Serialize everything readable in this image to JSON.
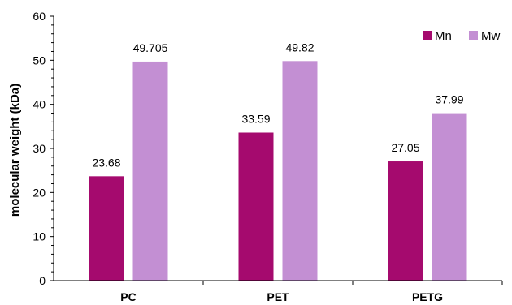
{
  "chart_data": {
    "type": "bar",
    "categories": [
      "PC",
      "PET",
      "PETG"
    ],
    "series": [
      {
        "name": "Mn",
        "values": [
          23.68,
          33.59,
          27.05
        ],
        "labels": [
          "23.68",
          "33.59",
          "27.05"
        ],
        "color": "#A50A6E"
      },
      {
        "name": "Mw",
        "values": [
          49.705,
          49.82,
          37.99
        ],
        "labels": [
          "49.705",
          "49.82",
          "37.99"
        ],
        "color": "#C38FD3"
      }
    ],
    "ylabel": "molecular weight (kDa)",
    "xlabel": "",
    "ylim": [
      0,
      60
    ],
    "yticks": [
      "0",
      "10",
      "20",
      "30",
      "40",
      "50",
      "60"
    ],
    "grid": false,
    "legend_position": "top-right"
  }
}
